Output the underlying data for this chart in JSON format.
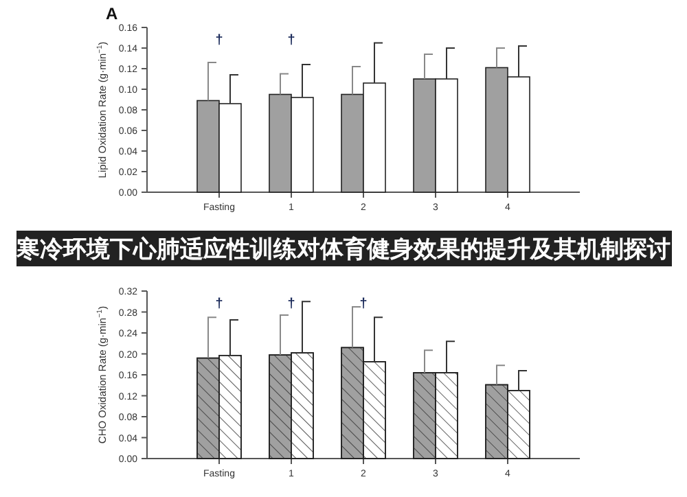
{
  "chart_data": [
    {
      "type": "bar",
      "title": "A",
      "ylabel": "Lipid Oxidation Rate (g·min$^{−1}$)",
      "categories": [
        "Fasting",
        "1",
        "2",
        "3",
        "4"
      ],
      "series": [
        {
          "color": "#a0a0a0",
          "values": [
            0.089,
            0.095,
            0.095,
            0.11,
            0.121
          ],
          "errors": [
            [
              0.089,
              0.126
            ],
            [
              0.095,
              0.115
            ],
            [
              0.095,
              0.122
            ],
            [
              0.11,
              0.134
            ],
            [
              0.121,
              0.14
            ]
          ]
        },
        {
          "color": "#ffffff",
          "values": [
            0.086,
            0.092,
            0.106,
            0.11,
            0.112
          ],
          "errors": [
            [
              0.086,
              0.114
            ],
            [
              0.092,
              0.124
            ],
            [
              0.106,
              0.145
            ],
            [
              0.11,
              0.14
            ],
            [
              0.112,
              0.142
            ]
          ]
        }
      ],
      "ylim": [
        0,
        0.16
      ],
      "yticks": [
        {
          "value": 0,
          "label": "0.00"
        },
        {
          "value": 0.02,
          "label": "0.02"
        },
        {
          "value": 0.04,
          "label": "0.04"
        },
        {
          "value": 0.06,
          "label": "0.06"
        },
        {
          "value": 0.08,
          "label": "0.08"
        },
        {
          "value": 0.1,
          "label": "0.10"
        },
        {
          "value": 0.12,
          "label": "0.12"
        },
        {
          "value": 0.14,
          "label": "0.14"
        },
        {
          "value": 0.16,
          "label": "0.16"
        }
      ],
      "annotations": [
        "†",
        "†"
      ]
    },
    {
      "type": "bar",
      "ylabel": "CHO Oxidation Rate (g·min$^{−1}$)",
      "categories": [
        "Fasting",
        "1",
        "2",
        "3",
        "4"
      ],
      "series": [
        {
          "color": "#a0a0a0",
          "values": [
            0.192,
            0.198,
            0.212,
            0.164,
            0.141
          ],
          "errors": [
            [
              0.192,
              0.27
            ],
            [
              0.198,
              0.274
            ],
            [
              0.212,
              0.29
            ],
            [
              0.164,
              0.207
            ],
            [
              0.141,
              0.178
            ]
          ]
        },
        {
          "color": "#ffffff",
          "values": [
            0.197,
            0.202,
            0.185,
            0.164,
            0.13
          ],
          "errors": [
            [
              0.197,
              0.265
            ],
            [
              0.202,
              0.3
            ],
            [
              0.185,
              0.27
            ],
            [
              0.164,
              0.224
            ],
            [
              0.13,
              0.168
            ]
          ]
        }
      ],
      "ylim": [
        0,
        0.32
      ],
      "yticks": [
        {
          "value": 0,
          "label": "0.00"
        },
        {
          "value": 0.04,
          "label": "0.04"
        },
        {
          "value": 0.08,
          "label": "0.08"
        },
        {
          "value": 0.12,
          "label": "0.12"
        },
        {
          "value": 0.16,
          "label": "0.16"
        },
        {
          "value": 0.2,
          "label": "0.20"
        },
        {
          "value": 0.24,
          "label": "0.24"
        },
        {
          "value": 0.28,
          "label": "0.28"
        },
        {
          "value": 0.32,
          "label": "0.32"
        }
      ],
      "annotations": [
        "寒冷环境下心肺适应性训练对体育健身效果的提升及其机制探讨",
        "†",
        "†",
        "†"
      ]
    }
  ]
}
